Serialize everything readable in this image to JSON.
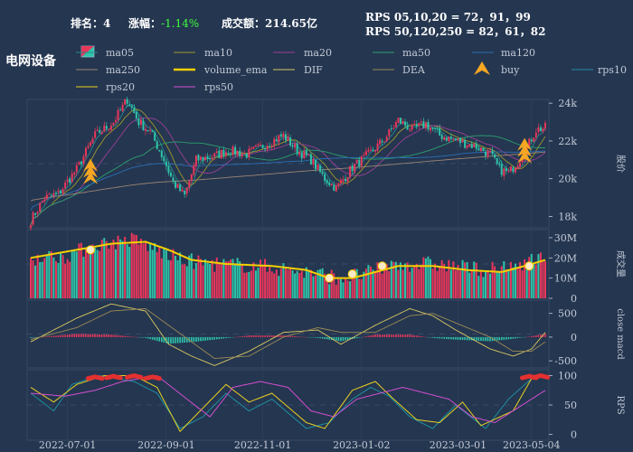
{
  "header": {
    "rank_label": "排名：",
    "rank_value": "4",
    "change_label": "涨幅：",
    "change_value": "-1.14%",
    "turnover_label": "成交额：",
    "turnover_value": "214.65亿",
    "rps_line1": "RPS 05,10,20 = 72，91，99",
    "rps_line2": "RPS 50,120,250 = 82，61，82"
  },
  "sector_name": "电网设备",
  "colors": {
    "background": "#253650",
    "up": "#e8375b",
    "down": "#2ec4a9",
    "volume_ema": "#f5d000",
    "ma05": "#1f8c8c",
    "ma10": "#9a9a2c",
    "ma20": "#9b3f95",
    "ma50": "#2aa06e",
    "ma120": "#2a6fb3",
    "ma250": "#9a8574",
    "dif": "#d9c860",
    "dea": "#9a8a55",
    "rps10": "#1e8fa0",
    "rps20": "#e8d020",
    "rps50": "#d24fd0",
    "buy": "#f5a623",
    "marker": "#e43030"
  },
  "legend": [
    {
      "name": "ma05",
      "key": "ma05",
      "style": "line"
    },
    {
      "name": "ma10",
      "key": "ma10",
      "style": "line"
    },
    {
      "name": "ma20",
      "key": "ma20",
      "style": "line"
    },
    {
      "name": "ma50",
      "key": "ma50",
      "style": "line"
    },
    {
      "name": "ma120",
      "key": "ma120",
      "style": "line"
    },
    {
      "name": "ma250",
      "key": "ma250",
      "style": "line"
    },
    {
      "name": "volume_ema",
      "key": "volume_ema",
      "style": "thick"
    },
    {
      "name": "DIF",
      "key": "dif",
      "style": "line"
    },
    {
      "name": "DEA",
      "key": "dea",
      "style": "line"
    },
    {
      "name": "buy",
      "key": "buy",
      "style": "triangle"
    },
    {
      "name": "rps10",
      "key": "rps10",
      "style": "line"
    },
    {
      "name": "rps20",
      "key": "rps20",
      "style": "line"
    },
    {
      "name": "rps50",
      "key": "rps50",
      "style": "line"
    }
  ],
  "chart_data": {
    "type": "candlestick",
    "x_ticks": [
      "2022-07-01",
      "2022-09-01",
      "2022-11-01",
      "2023-01-02",
      "2023-03-01",
      "2023-05-04"
    ],
    "panels": {
      "price": {
        "ylabel": "股价",
        "ticks": [
          "18k",
          "20k",
          "22k",
          "24k"
        ],
        "ylim": [
          17400,
          24200
        ],
        "close_anchors": [
          [
            0,
            17800
          ],
          [
            6,
            19000
          ],
          [
            12,
            19200
          ],
          [
            20,
            20500
          ],
          [
            28,
            22300
          ],
          [
            36,
            23000
          ],
          [
            42,
            24200
          ],
          [
            47,
            23000
          ],
          [
            52,
            22500
          ],
          [
            58,
            21000
          ],
          [
            62,
            19800
          ],
          [
            67,
            19100
          ],
          [
            72,
            21000
          ],
          [
            80,
            21200
          ],
          [
            86,
            21500
          ],
          [
            94,
            21300
          ],
          [
            102,
            21800
          ],
          [
            110,
            22300
          ],
          [
            116,
            21500
          ],
          [
            122,
            21000
          ],
          [
            128,
            20000
          ],
          [
            133,
            19500
          ],
          [
            140,
            20600
          ],
          [
            148,
            21400
          ],
          [
            154,
            22100
          ],
          [
            160,
            23100
          ],
          [
            166,
            22600
          ],
          [
            172,
            22900
          ],
          [
            178,
            22300
          ],
          [
            186,
            22000
          ],
          [
            194,
            21700
          ],
          [
            200,
            21300
          ],
          [
            204,
            20500
          ],
          [
            208,
            20300
          ],
          [
            214,
            21200
          ],
          [
            220,
            22600
          ],
          [
            224,
            22700
          ]
        ],
        "buy_markers": [
          [
            26,
            20100
          ],
          [
            215,
            21200
          ]
        ]
      },
      "volume": {
        "ylabel": "成交量",
        "ticks": [
          "0",
          "10M",
          "20M",
          "30M"
        ],
        "ylim": [
          0,
          34000000
        ],
        "vol_anchors": [
          [
            0,
            20
          ],
          [
            15,
            21
          ],
          [
            30,
            27
          ],
          [
            45,
            29
          ],
          [
            55,
            24
          ],
          [
            65,
            19
          ],
          [
            80,
            17
          ],
          [
            100,
            16
          ],
          [
            120,
            13
          ],
          [
            135,
            10
          ],
          [
            145,
            12
          ],
          [
            160,
            17
          ],
          [
            175,
            17
          ],
          [
            190,
            15
          ],
          [
            205,
            14
          ],
          [
            215,
            18
          ],
          [
            224,
            20
          ]
        ],
        "ema_anchors": [
          [
            0,
            20
          ],
          [
            20,
            24
          ],
          [
            35,
            27
          ],
          [
            50,
            28
          ],
          [
            60,
            24
          ],
          [
            70,
            19
          ],
          [
            85,
            17
          ],
          [
            105,
            16
          ],
          [
            120,
            14
          ],
          [
            130,
            10
          ],
          [
            140,
            10
          ],
          [
            150,
            13
          ],
          [
            160,
            16
          ],
          [
            175,
            16
          ],
          [
            190,
            14
          ],
          [
            205,
            13
          ],
          [
            215,
            16
          ],
          [
            224,
            19
          ]
        ],
        "markers": [
          [
            26,
            24
          ],
          [
            130,
            10
          ],
          [
            140,
            12
          ],
          [
            153,
            16
          ],
          [
            217,
            16
          ]
        ]
      },
      "macd": {
        "ylabel": "close macd",
        "ticks": [
          "-500",
          "0",
          "500"
        ],
        "ylim": [
          -650,
          780
        ],
        "dif_anchors": [
          [
            0,
            -100
          ],
          [
            20,
            400
          ],
          [
            35,
            700
          ],
          [
            50,
            550
          ],
          [
            60,
            -150
          ],
          [
            70,
            -400
          ],
          [
            80,
            -600
          ],
          [
            95,
            -300
          ],
          [
            110,
            100
          ],
          [
            125,
            150
          ],
          [
            135,
            -150
          ],
          [
            150,
            250
          ],
          [
            165,
            600
          ],
          [
            175,
            450
          ],
          [
            185,
            150
          ],
          [
            200,
            -250
          ],
          [
            210,
            -400
          ],
          [
            218,
            -250
          ],
          [
            224,
            100
          ]
        ],
        "dea_anchors": [
          [
            0,
            -50
          ],
          [
            20,
            200
          ],
          [
            35,
            550
          ],
          [
            50,
            600
          ],
          [
            60,
            250
          ],
          [
            70,
            -100
          ],
          [
            80,
            -450
          ],
          [
            95,
            -400
          ],
          [
            110,
            0
          ],
          [
            125,
            200
          ],
          [
            135,
            100
          ],
          [
            150,
            100
          ],
          [
            165,
            450
          ],
          [
            175,
            500
          ],
          [
            185,
            300
          ],
          [
            200,
            0
          ],
          [
            210,
            -300
          ],
          [
            218,
            -300
          ],
          [
            224,
            -100
          ]
        ]
      },
      "rps": {
        "ylabel": "RPS",
        "ticks": [
          "0",
          "50",
          "100"
        ],
        "ylim": [
          -10,
          110
        ],
        "rps10_anchors": [
          [
            0,
            70
          ],
          [
            10,
            40
          ],
          [
            18,
            85
          ],
          [
            30,
            100
          ],
          [
            45,
            90
          ],
          [
            55,
            70
          ],
          [
            65,
            10
          ],
          [
            75,
            30
          ],
          [
            85,
            70
          ],
          [
            95,
            40
          ],
          [
            105,
            60
          ],
          [
            120,
            10
          ],
          [
            130,
            20
          ],
          [
            140,
            60
          ],
          [
            148,
            80
          ],
          [
            156,
            65
          ],
          [
            165,
            30
          ],
          [
            175,
            10
          ],
          [
            185,
            50
          ],
          [
            198,
            10
          ],
          [
            208,
            60
          ],
          [
            218,
            95
          ],
          [
            224,
            100
          ]
        ],
        "rps20_anchors": [
          [
            0,
            80
          ],
          [
            10,
            55
          ],
          [
            20,
            85
          ],
          [
            32,
            100
          ],
          [
            45,
            100
          ],
          [
            55,
            80
          ],
          [
            65,
            5
          ],
          [
            75,
            45
          ],
          [
            85,
            85
          ],
          [
            95,
            55
          ],
          [
            105,
            70
          ],
          [
            120,
            20
          ],
          [
            128,
            10
          ],
          [
            140,
            75
          ],
          [
            150,
            90
          ],
          [
            158,
            60
          ],
          [
            168,
            25
          ],
          [
            178,
            20
          ],
          [
            188,
            55
          ],
          [
            196,
            15
          ],
          [
            210,
            40
          ],
          [
            218,
            95
          ],
          [
            224,
            100
          ]
        ],
        "rps50_anchors": [
          [
            0,
            70
          ],
          [
            15,
            65
          ],
          [
            28,
            75
          ],
          [
            40,
            90
          ],
          [
            55,
            100
          ],
          [
            68,
            60
          ],
          [
            78,
            30
          ],
          [
            88,
            80
          ],
          [
            100,
            90
          ],
          [
            112,
            80
          ],
          [
            122,
            40
          ],
          [
            132,
            30
          ],
          [
            142,
            60
          ],
          [
            152,
            70
          ],
          [
            162,
            80
          ],
          [
            172,
            70
          ],
          [
            182,
            60
          ],
          [
            192,
            30
          ],
          [
            202,
            20
          ],
          [
            212,
            45
          ],
          [
            224,
            75
          ]
        ],
        "markers": [
          [
            28,
            98
          ],
          [
            36,
            99
          ],
          [
            45,
            100
          ],
          [
            53,
            98
          ],
          [
            217,
            99
          ],
          [
            222,
            100
          ]
        ]
      }
    }
  }
}
